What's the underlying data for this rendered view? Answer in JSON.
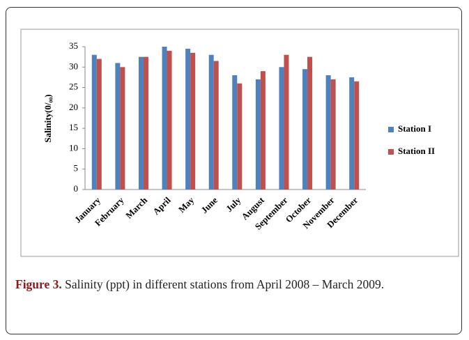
{
  "chart_data": {
    "type": "bar",
    "ylabel": "Salinity(0/₀₀)",
    "categories": [
      "January",
      "February",
      "March",
      "April",
      "May",
      "June",
      "July",
      "August",
      "September",
      "October",
      "November",
      "December"
    ],
    "series": [
      {
        "name": "Station I",
        "color": "#4f81bd",
        "values": [
          33,
          31,
          32.5,
          35,
          34.5,
          33,
          28,
          27,
          30,
          29.5,
          28,
          27.5
        ]
      },
      {
        "name": "Station II",
        "color": "#c0504d",
        "values": [
          32,
          30,
          32.5,
          34,
          33.5,
          31.5,
          26,
          29,
          33,
          32.5,
          27,
          26.5
        ]
      }
    ],
    "ylim": [
      0,
      35
    ],
    "yticks": [
      0,
      5,
      10,
      15,
      20,
      25,
      30,
      35
    ],
    "legend": "right"
  },
  "caption": {
    "label": "Figure 3.",
    "text": "Salinity (ppt) in different stations from April 2008 – March 2009."
  }
}
